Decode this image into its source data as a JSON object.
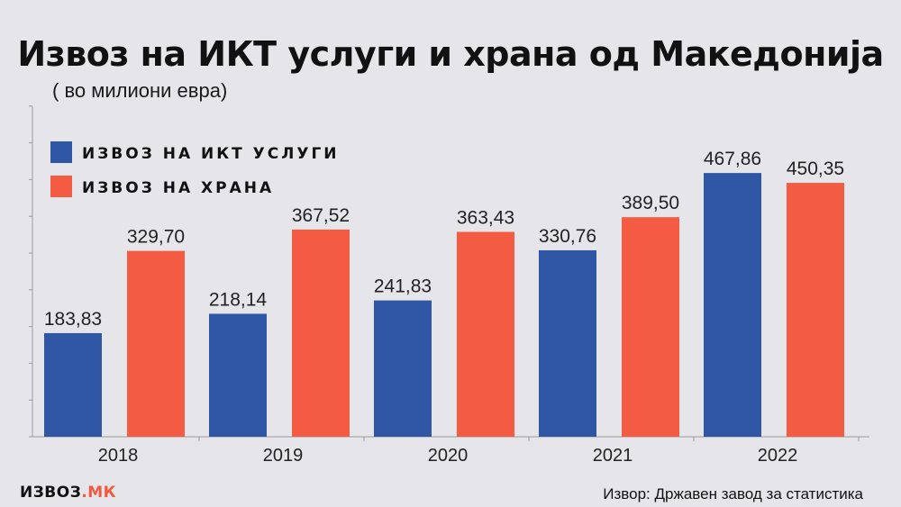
{
  "header": {
    "title": "Извоз на ИКТ услуги и храна од Македонија",
    "subtitle": "( во милиони евра)"
  },
  "footer": {
    "brand_main": "ИЗВОЗ",
    "brand_suffix": ".МК",
    "source": "Извор: Државен завод за статистика"
  },
  "colors": {
    "ict": "#2f57a5",
    "food": "#f45b43",
    "background": "#e6e5ea",
    "axis": "#9a9aa0",
    "brand_accent": "#f05a40"
  },
  "chart_data": {
    "type": "bar",
    "title": "Извоз на ИКТ услуги и храна од Македонија",
    "subtitle": "( во милиони евра)",
    "categories": [
      "2018",
      "2019",
      "2020",
      "2021",
      "2022"
    ],
    "series": [
      {
        "name": "ИЗВОЗ НА ИКТ УСЛУГИ",
        "values": [
          183.83,
          218.14,
          241.83,
          330.76,
          467.86
        ],
        "labels": [
          "183,83",
          "218,14",
          "241,83",
          "330,76",
          "467,86"
        ],
        "color": "#2f57a5"
      },
      {
        "name": "ИЗВОЗ НА ХРАНА",
        "values": [
          329.7,
          367.52,
          363.43,
          389.5,
          450.35
        ],
        "labels": [
          "329,70",
          "367,52",
          "363,43",
          "389,50",
          "450,35"
        ],
        "color": "#f45b43"
      }
    ],
    "ylim": [
      0,
      500
    ],
    "grid": false,
    "legend_position": "top-left"
  }
}
